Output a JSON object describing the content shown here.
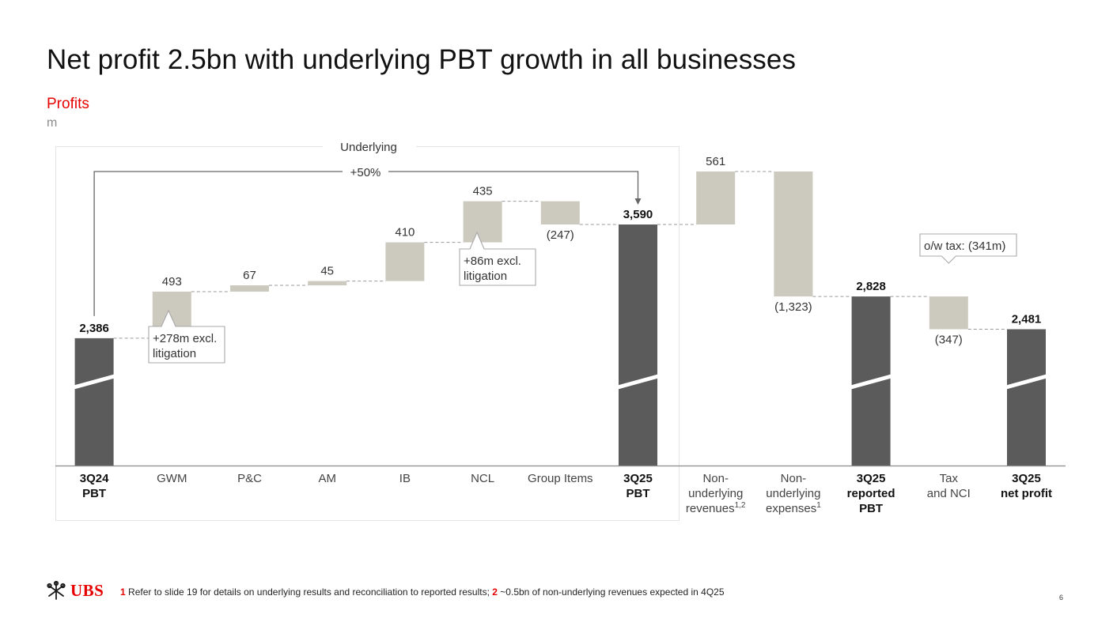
{
  "title": "Net profit 2.5bn with underlying PBT growth in all businesses",
  "subtitle": "Profits",
  "unit": "m",
  "colors": {
    "accent": "#e60000",
    "total_bar": "#5a5b5a",
    "delta_bar": "#ccc9be",
    "axis": "#8c8c8c"
  },
  "chart_data": {
    "type": "waterfall",
    "underlying_box_label": "Underlying",
    "growth_label": "+50%",
    "ylim": [
      0,
      3700
    ],
    "axis_break": true,
    "steps": [
      {
        "id": "3q24-pbt",
        "label": [
          "3Q24",
          "PBT"
        ],
        "kind": "total",
        "start": 0,
        "end": 2386,
        "value_label": "2,386",
        "bold": true
      },
      {
        "id": "gwm",
        "label": [
          "GWM"
        ],
        "kind": "delta",
        "start": 2386,
        "end": 2879,
        "value_label": "493",
        "bold": false
      },
      {
        "id": "pc",
        "label": [
          "P&C"
        ],
        "kind": "delta",
        "start": 2879,
        "end": 2946,
        "value_label": "67",
        "bold": false
      },
      {
        "id": "am",
        "label": [
          "AM"
        ],
        "kind": "delta",
        "start": 2946,
        "end": 2991,
        "value_label": "45",
        "bold": false
      },
      {
        "id": "ib",
        "label": [
          "IB"
        ],
        "kind": "delta",
        "start": 2991,
        "end": 3401,
        "value_label": "410",
        "bold": false
      },
      {
        "id": "ncl",
        "label": [
          "NCL"
        ],
        "kind": "delta",
        "start": 3401,
        "end": 3836,
        "value_label": "435",
        "bold": false
      },
      {
        "id": "group-items",
        "label": [
          "Group Items"
        ],
        "kind": "delta",
        "start": 3836,
        "end": 3590,
        "value_label": "(247)",
        "bold": false
      },
      {
        "id": "3q25-pbt",
        "label": [
          "3Q25",
          "PBT"
        ],
        "kind": "total",
        "start": 0,
        "end": 3590,
        "value_label": "3,590",
        "bold": true
      },
      {
        "id": "non-und-rev",
        "label": [
          "Non-",
          "underlying",
          "revenues"
        ],
        "sup": "1,2",
        "kind": "delta",
        "start": 3590,
        "end": 4151,
        "value_label": "561",
        "bold": false
      },
      {
        "id": "non-und-exp",
        "label": [
          "Non-",
          "underlying",
          "expenses"
        ],
        "sup": "1",
        "kind": "delta",
        "start": 4151,
        "end": 2828,
        "value_label": "(1,323)",
        "bold": false
      },
      {
        "id": "3q25-reported",
        "label": [
          "3Q25",
          "reported",
          "PBT"
        ],
        "kind": "total",
        "start": 0,
        "end": 2828,
        "value_label": "2,828",
        "bold": true
      },
      {
        "id": "tax-nci",
        "label": [
          "Tax",
          "and NCI"
        ],
        "kind": "delta",
        "start": 2828,
        "end": 2481,
        "value_label": "(347)",
        "bold": false
      },
      {
        "id": "3q25-net",
        "label": [
          "3Q25",
          "net profit"
        ],
        "kind": "total",
        "start": 0,
        "end": 2481,
        "value_label": "2,481",
        "bold": true
      }
    ],
    "callouts": [
      {
        "id": "gwm-callout",
        "step": "gwm",
        "lines": [
          "+278m excl.",
          "litigation"
        ]
      },
      {
        "id": "ncl-callout",
        "step": "ncl",
        "lines": [
          "+86m excl.",
          "litigation"
        ]
      },
      {
        "id": "tax-callout",
        "step": "tax-nci",
        "lines": [
          "o/w  tax: (341m)"
        ]
      }
    ]
  },
  "footer": {
    "brand": "UBS",
    "footnote_1_num": "1",
    "footnote_1_text": " Refer to slide 19 for details on underlying results and reconciliation to reported results; ",
    "footnote_2_num": "2",
    "footnote_2_text": " ~0.5bn of non-underlying revenues expected in 4Q25",
    "page_number": "6"
  }
}
